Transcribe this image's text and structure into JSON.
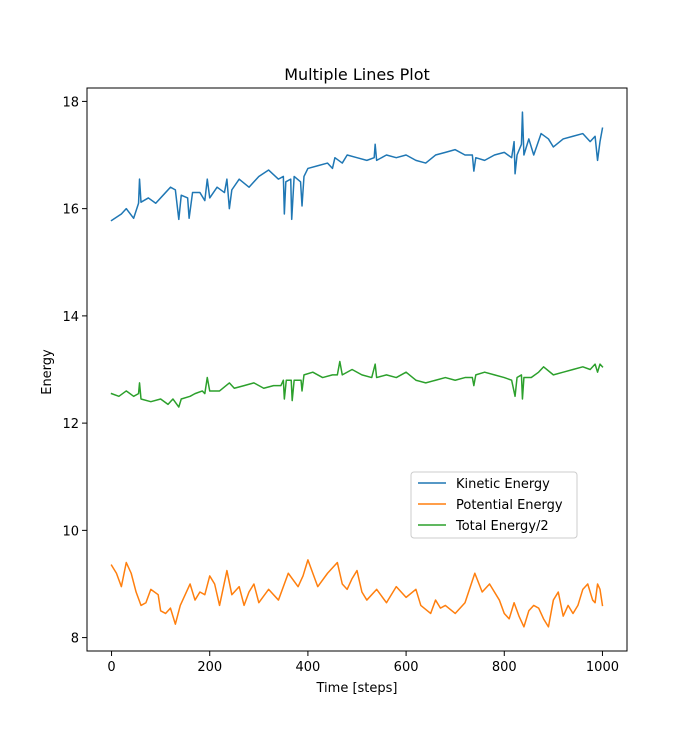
{
  "chart_data": {
    "type": "line",
    "title": "Multiple Lines Plot",
    "xlabel": "Time [steps]",
    "ylabel": "Energy",
    "xlim": [
      -50,
      1050
    ],
    "ylim": [
      7.75,
      18.25
    ],
    "xticks": [
      0,
      200,
      400,
      600,
      800,
      1000
    ],
    "yticks": [
      8,
      10,
      12,
      14,
      16,
      18
    ],
    "grid": false,
    "legend_position": "center-right",
    "series": [
      {
        "name": "Kinetic Energy",
        "color": "#1f77b4",
        "points": [
          [
            0,
            15.78
          ],
          [
            20,
            15.9
          ],
          [
            30,
            16.0
          ],
          [
            45,
            15.82
          ],
          [
            55,
            16.1
          ],
          [
            57,
            16.55
          ],
          [
            60,
            16.12
          ],
          [
            75,
            16.2
          ],
          [
            90,
            16.1
          ],
          [
            110,
            16.3
          ],
          [
            120,
            16.4
          ],
          [
            130,
            16.35
          ],
          [
            137,
            15.8
          ],
          [
            142,
            16.25
          ],
          [
            155,
            16.2
          ],
          [
            158,
            15.82
          ],
          [
            165,
            16.3
          ],
          [
            180,
            16.3
          ],
          [
            190,
            16.15
          ],
          [
            195,
            16.55
          ],
          [
            200,
            16.2
          ],
          [
            215,
            16.4
          ],
          [
            230,
            16.3
          ],
          [
            235,
            16.55
          ],
          [
            240,
            16.0
          ],
          [
            245,
            16.35
          ],
          [
            260,
            16.55
          ],
          [
            280,
            16.4
          ],
          [
            300,
            16.6
          ],
          [
            320,
            16.72
          ],
          [
            340,
            16.55
          ],
          [
            350,
            16.6
          ],
          [
            352,
            15.9
          ],
          [
            355,
            16.5
          ],
          [
            365,
            16.55
          ],
          [
            367,
            15.8
          ],
          [
            372,
            16.6
          ],
          [
            385,
            16.5
          ],
          [
            388,
            16.05
          ],
          [
            392,
            16.6
          ],
          [
            400,
            16.75
          ],
          [
            420,
            16.8
          ],
          [
            440,
            16.85
          ],
          [
            450,
            16.75
          ],
          [
            455,
            16.95
          ],
          [
            470,
            16.85
          ],
          [
            480,
            17.0
          ],
          [
            500,
            16.95
          ],
          [
            520,
            16.9
          ],
          [
            535,
            16.95
          ],
          [
            537,
            17.2
          ],
          [
            540,
            16.9
          ],
          [
            560,
            17.0
          ],
          [
            580,
            16.95
          ],
          [
            600,
            17.0
          ],
          [
            620,
            16.9
          ],
          [
            640,
            16.85
          ],
          [
            660,
            17.0
          ],
          [
            680,
            17.05
          ],
          [
            700,
            17.1
          ],
          [
            720,
            17.0
          ],
          [
            735,
            17.0
          ],
          [
            738,
            16.7
          ],
          [
            742,
            16.95
          ],
          [
            760,
            16.9
          ],
          [
            780,
            17.0
          ],
          [
            800,
            17.05
          ],
          [
            815,
            16.95
          ],
          [
            820,
            17.25
          ],
          [
            822,
            16.65
          ],
          [
            826,
            17.0
          ],
          [
            835,
            17.2
          ],
          [
            837,
            17.8
          ],
          [
            840,
            17.0
          ],
          [
            850,
            17.3
          ],
          [
            860,
            17.0
          ],
          [
            875,
            17.4
          ],
          [
            890,
            17.3
          ],
          [
            900,
            17.15
          ],
          [
            920,
            17.3
          ],
          [
            940,
            17.35
          ],
          [
            960,
            17.4
          ],
          [
            975,
            17.25
          ],
          [
            985,
            17.35
          ],
          [
            990,
            16.9
          ],
          [
            995,
            17.25
          ],
          [
            1000,
            17.5
          ]
        ]
      },
      {
        "name": "Potential Energy",
        "color": "#ff7f0e",
        "points": [
          [
            0,
            9.35
          ],
          [
            10,
            9.2
          ],
          [
            20,
            8.95
          ],
          [
            30,
            9.4
          ],
          [
            40,
            9.2
          ],
          [
            50,
            8.85
          ],
          [
            60,
            8.6
          ],
          [
            70,
            8.65
          ],
          [
            80,
            8.9
          ],
          [
            95,
            8.8
          ],
          [
            100,
            8.5
          ],
          [
            110,
            8.45
          ],
          [
            120,
            8.55
          ],
          [
            130,
            8.25
          ],
          [
            140,
            8.6
          ],
          [
            150,
            8.8
          ],
          [
            160,
            9.0
          ],
          [
            170,
            8.7
          ],
          [
            180,
            8.85
          ],
          [
            190,
            8.8
          ],
          [
            200,
            9.15
          ],
          [
            210,
            9.0
          ],
          [
            220,
            8.6
          ],
          [
            235,
            9.25
          ],
          [
            245,
            8.8
          ],
          [
            260,
            8.95
          ],
          [
            270,
            8.6
          ],
          [
            280,
            8.85
          ],
          [
            290,
            9.0
          ],
          [
            300,
            8.65
          ],
          [
            320,
            8.9
          ],
          [
            340,
            8.7
          ],
          [
            360,
            9.2
          ],
          [
            380,
            8.95
          ],
          [
            390,
            9.15
          ],
          [
            400,
            9.45
          ],
          [
            420,
            8.95
          ],
          [
            440,
            9.2
          ],
          [
            460,
            9.4
          ],
          [
            470,
            9.0
          ],
          [
            480,
            8.9
          ],
          [
            490,
            9.1
          ],
          [
            500,
            9.25
          ],
          [
            510,
            8.85
          ],
          [
            520,
            8.7
          ],
          [
            540,
            8.9
          ],
          [
            560,
            8.65
          ],
          [
            580,
            8.95
          ],
          [
            600,
            8.75
          ],
          [
            620,
            8.9
          ],
          [
            630,
            8.6
          ],
          [
            650,
            8.45
          ],
          [
            660,
            8.7
          ],
          [
            670,
            8.55
          ],
          [
            680,
            8.6
          ],
          [
            700,
            8.45
          ],
          [
            720,
            8.65
          ],
          [
            740,
            9.2
          ],
          [
            755,
            8.85
          ],
          [
            770,
            9.0
          ],
          [
            790,
            8.7
          ],
          [
            800,
            8.45
          ],
          [
            810,
            8.35
          ],
          [
            820,
            8.65
          ],
          [
            830,
            8.4
          ],
          [
            840,
            8.2
          ],
          [
            850,
            8.5
          ],
          [
            860,
            8.6
          ],
          [
            870,
            8.55
          ],
          [
            880,
            8.35
          ],
          [
            890,
            8.2
          ],
          [
            900,
            8.7
          ],
          [
            910,
            8.85
          ],
          [
            920,
            8.4
          ],
          [
            930,
            8.6
          ],
          [
            940,
            8.45
          ],
          [
            950,
            8.6
          ],
          [
            960,
            8.9
          ],
          [
            970,
            9.0
          ],
          [
            980,
            8.7
          ],
          [
            985,
            8.65
          ],
          [
            990,
            9.0
          ],
          [
            995,
            8.9
          ],
          [
            1000,
            8.6
          ]
        ]
      },
      {
        "name": "Total Energy/2",
        "color": "#2ca02c",
        "points": [
          [
            0,
            12.55
          ],
          [
            15,
            12.5
          ],
          [
            30,
            12.6
          ],
          [
            45,
            12.5
          ],
          [
            55,
            12.55
          ],
          [
            57,
            12.75
          ],
          [
            60,
            12.45
          ],
          [
            80,
            12.4
          ],
          [
            100,
            12.45
          ],
          [
            115,
            12.35
          ],
          [
            125,
            12.45
          ],
          [
            137,
            12.3
          ],
          [
            142,
            12.45
          ],
          [
            160,
            12.5
          ],
          [
            170,
            12.55
          ],
          [
            185,
            12.6
          ],
          [
            190,
            12.55
          ],
          [
            195,
            12.85
          ],
          [
            200,
            12.6
          ],
          [
            220,
            12.6
          ],
          [
            240,
            12.75
          ],
          [
            250,
            12.65
          ],
          [
            270,
            12.7
          ],
          [
            290,
            12.75
          ],
          [
            310,
            12.65
          ],
          [
            330,
            12.7
          ],
          [
            345,
            12.7
          ],
          [
            350,
            12.8
          ],
          [
            352,
            12.45
          ],
          [
            356,
            12.8
          ],
          [
            366,
            12.8
          ],
          [
            368,
            12.42
          ],
          [
            372,
            12.8
          ],
          [
            386,
            12.8
          ],
          [
            388,
            12.6
          ],
          [
            392,
            12.9
          ],
          [
            410,
            12.95
          ],
          [
            430,
            12.85
          ],
          [
            450,
            12.9
          ],
          [
            460,
            12.9
          ],
          [
            465,
            13.15
          ],
          [
            470,
            12.9
          ],
          [
            490,
            13.0
          ],
          [
            510,
            12.9
          ],
          [
            530,
            12.85
          ],
          [
            537,
            13.1
          ],
          [
            540,
            12.85
          ],
          [
            560,
            12.9
          ],
          [
            580,
            12.85
          ],
          [
            600,
            12.95
          ],
          [
            620,
            12.8
          ],
          [
            640,
            12.75
          ],
          [
            660,
            12.8
          ],
          [
            680,
            12.85
          ],
          [
            700,
            12.8
          ],
          [
            720,
            12.85
          ],
          [
            735,
            12.85
          ],
          [
            738,
            12.7
          ],
          [
            742,
            12.9
          ],
          [
            760,
            12.95
          ],
          [
            780,
            12.9
          ],
          [
            800,
            12.85
          ],
          [
            815,
            12.8
          ],
          [
            822,
            12.5
          ],
          [
            826,
            12.85
          ],
          [
            835,
            12.9
          ],
          [
            837,
            12.45
          ],
          [
            840,
            12.85
          ],
          [
            855,
            12.85
          ],
          [
            870,
            12.95
          ],
          [
            880,
            13.05
          ],
          [
            900,
            12.9
          ],
          [
            920,
            12.95
          ],
          [
            940,
            13.0
          ],
          [
            960,
            13.05
          ],
          [
            975,
            13.0
          ],
          [
            985,
            13.1
          ],
          [
            990,
            12.95
          ],
          [
            995,
            13.1
          ],
          [
            1000,
            13.05
          ]
        ]
      }
    ]
  }
}
